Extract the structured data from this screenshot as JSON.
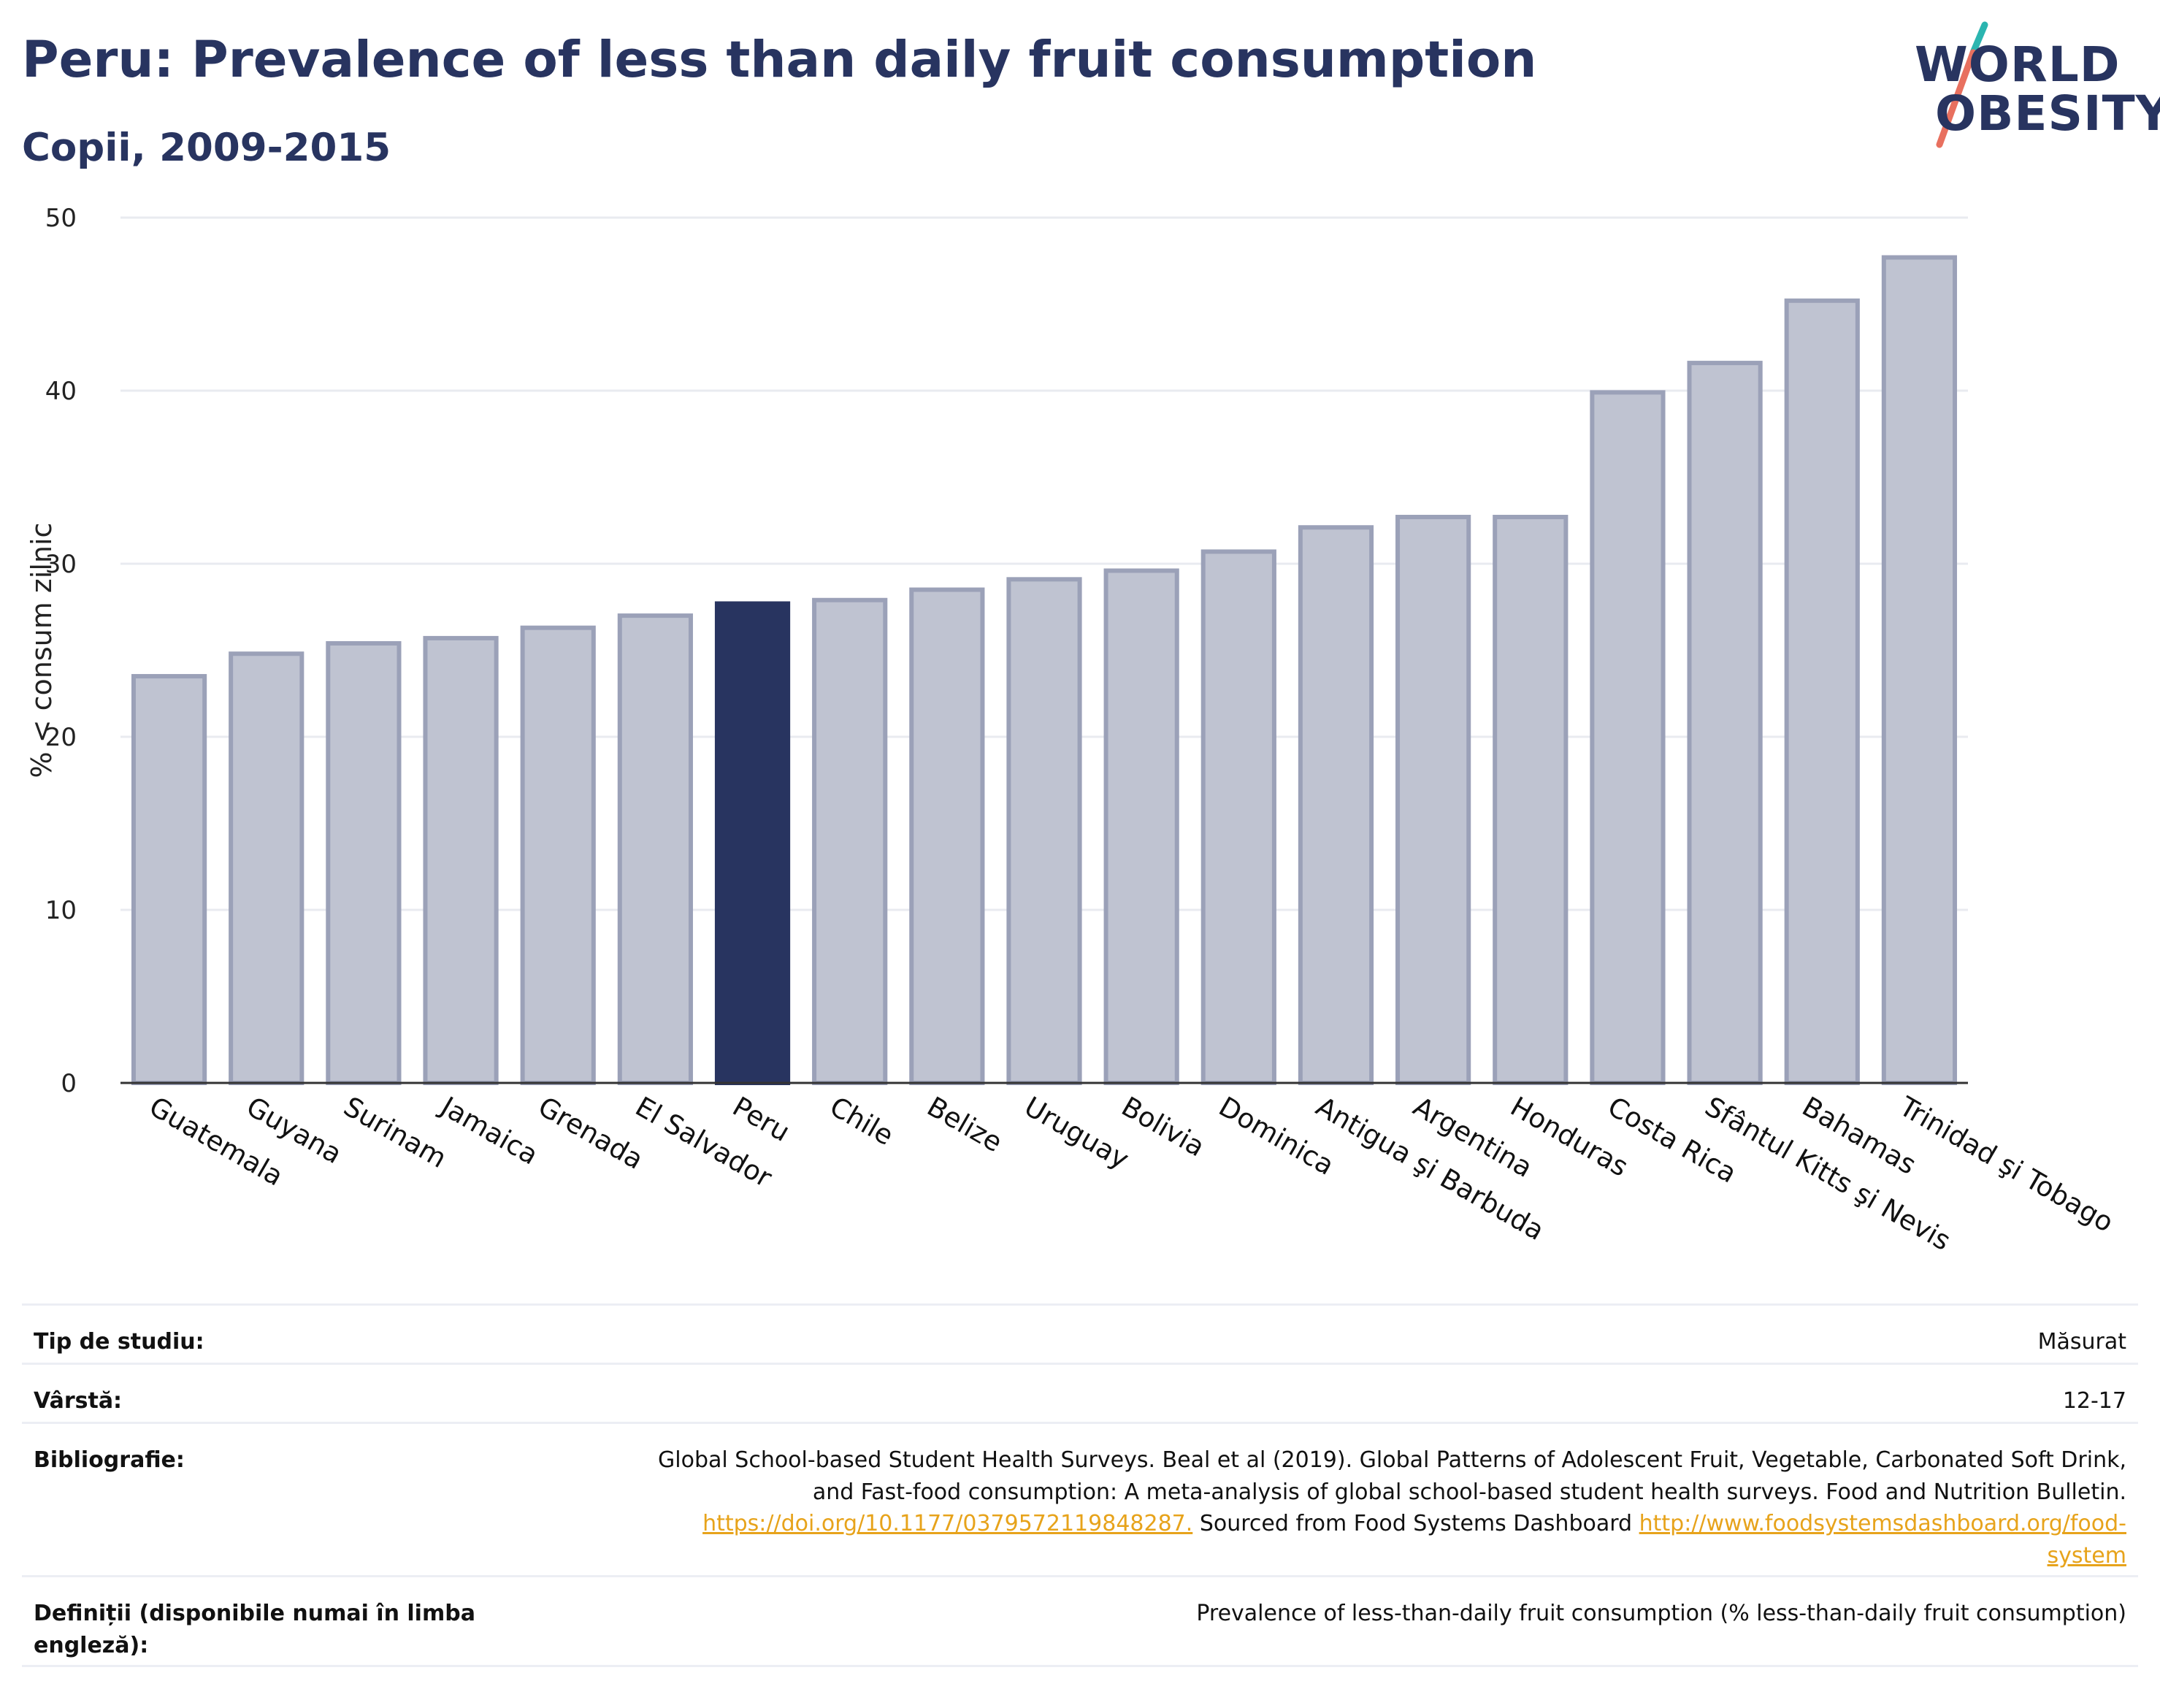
{
  "header": {
    "title": "Peru: Prevalence of less than daily fruit consumption",
    "subtitle": "Copii, 2009-2015"
  },
  "logo": {
    "line1": "WORLD",
    "line2": "OBESITY"
  },
  "colors": {
    "highlight": "#283460",
    "bar": "#bfc3d1",
    "bar_edge": "#9ba1b8",
    "title": "#283460",
    "link": "#e7a31b"
  },
  "chart_data": {
    "type": "bar",
    "ylabel": "% < consum zilnic",
    "xlabel": "",
    "ylim": [
      0,
      50
    ],
    "yticks": [
      0,
      10,
      20,
      30,
      40,
      50
    ],
    "grid": true,
    "highlight": "Peru",
    "categories": [
      "Guatemala",
      "Guyana",
      "Surinam",
      "Jamaica",
      "Grenada",
      "El Salvador",
      "Peru",
      "Chile",
      "Belize",
      "Uruguay",
      "Bolivia",
      "Dominica",
      "Antigua şi Barbuda",
      "Argentina",
      "Honduras",
      "Costa Rica",
      "Sfântul Kitts şi Nevis",
      "Bahamas",
      "Trinidad şi Tobago"
    ],
    "values": [
      23.5,
      24.8,
      25.4,
      25.7,
      26.3,
      27.0,
      27.7,
      27.9,
      28.5,
      29.1,
      29.6,
      30.7,
      32.1,
      32.7,
      32.7,
      39.9,
      41.6,
      45.2,
      47.7
    ]
  },
  "info": {
    "study_type_label": "Tip de studiu:",
    "study_type_value": "Măsurat",
    "age_label": "Vârstă:",
    "age_value": "12-17",
    "bibliography_label": "Bibliografie:",
    "bibliography_line1": "Global School-based Student Health Surveys. Beal et al (2019). Global Patterns of Adolescent Fruit, Vegetable, Carbonated Soft Drink,",
    "bibliography_line2": "and Fast-food consumption: A meta-analysis of global school-based student health surveys. Food and Nutrition Bulletin.",
    "bibliography_link1": "https://doi.org/10.1177/0379572119848287.",
    "bibliography_mid": " Sourced from Food Systems Dashboard ",
    "bibliography_link2a": "http://www.foodsystemsdashboard.org/food-",
    "bibliography_link2b": "system",
    "definitions_label": "Definiții (disponibile numai în limba engleză):",
    "definitions_value": "Prevalence of less-than-daily fruit consumption (% less-than-daily fruit consumption)"
  }
}
